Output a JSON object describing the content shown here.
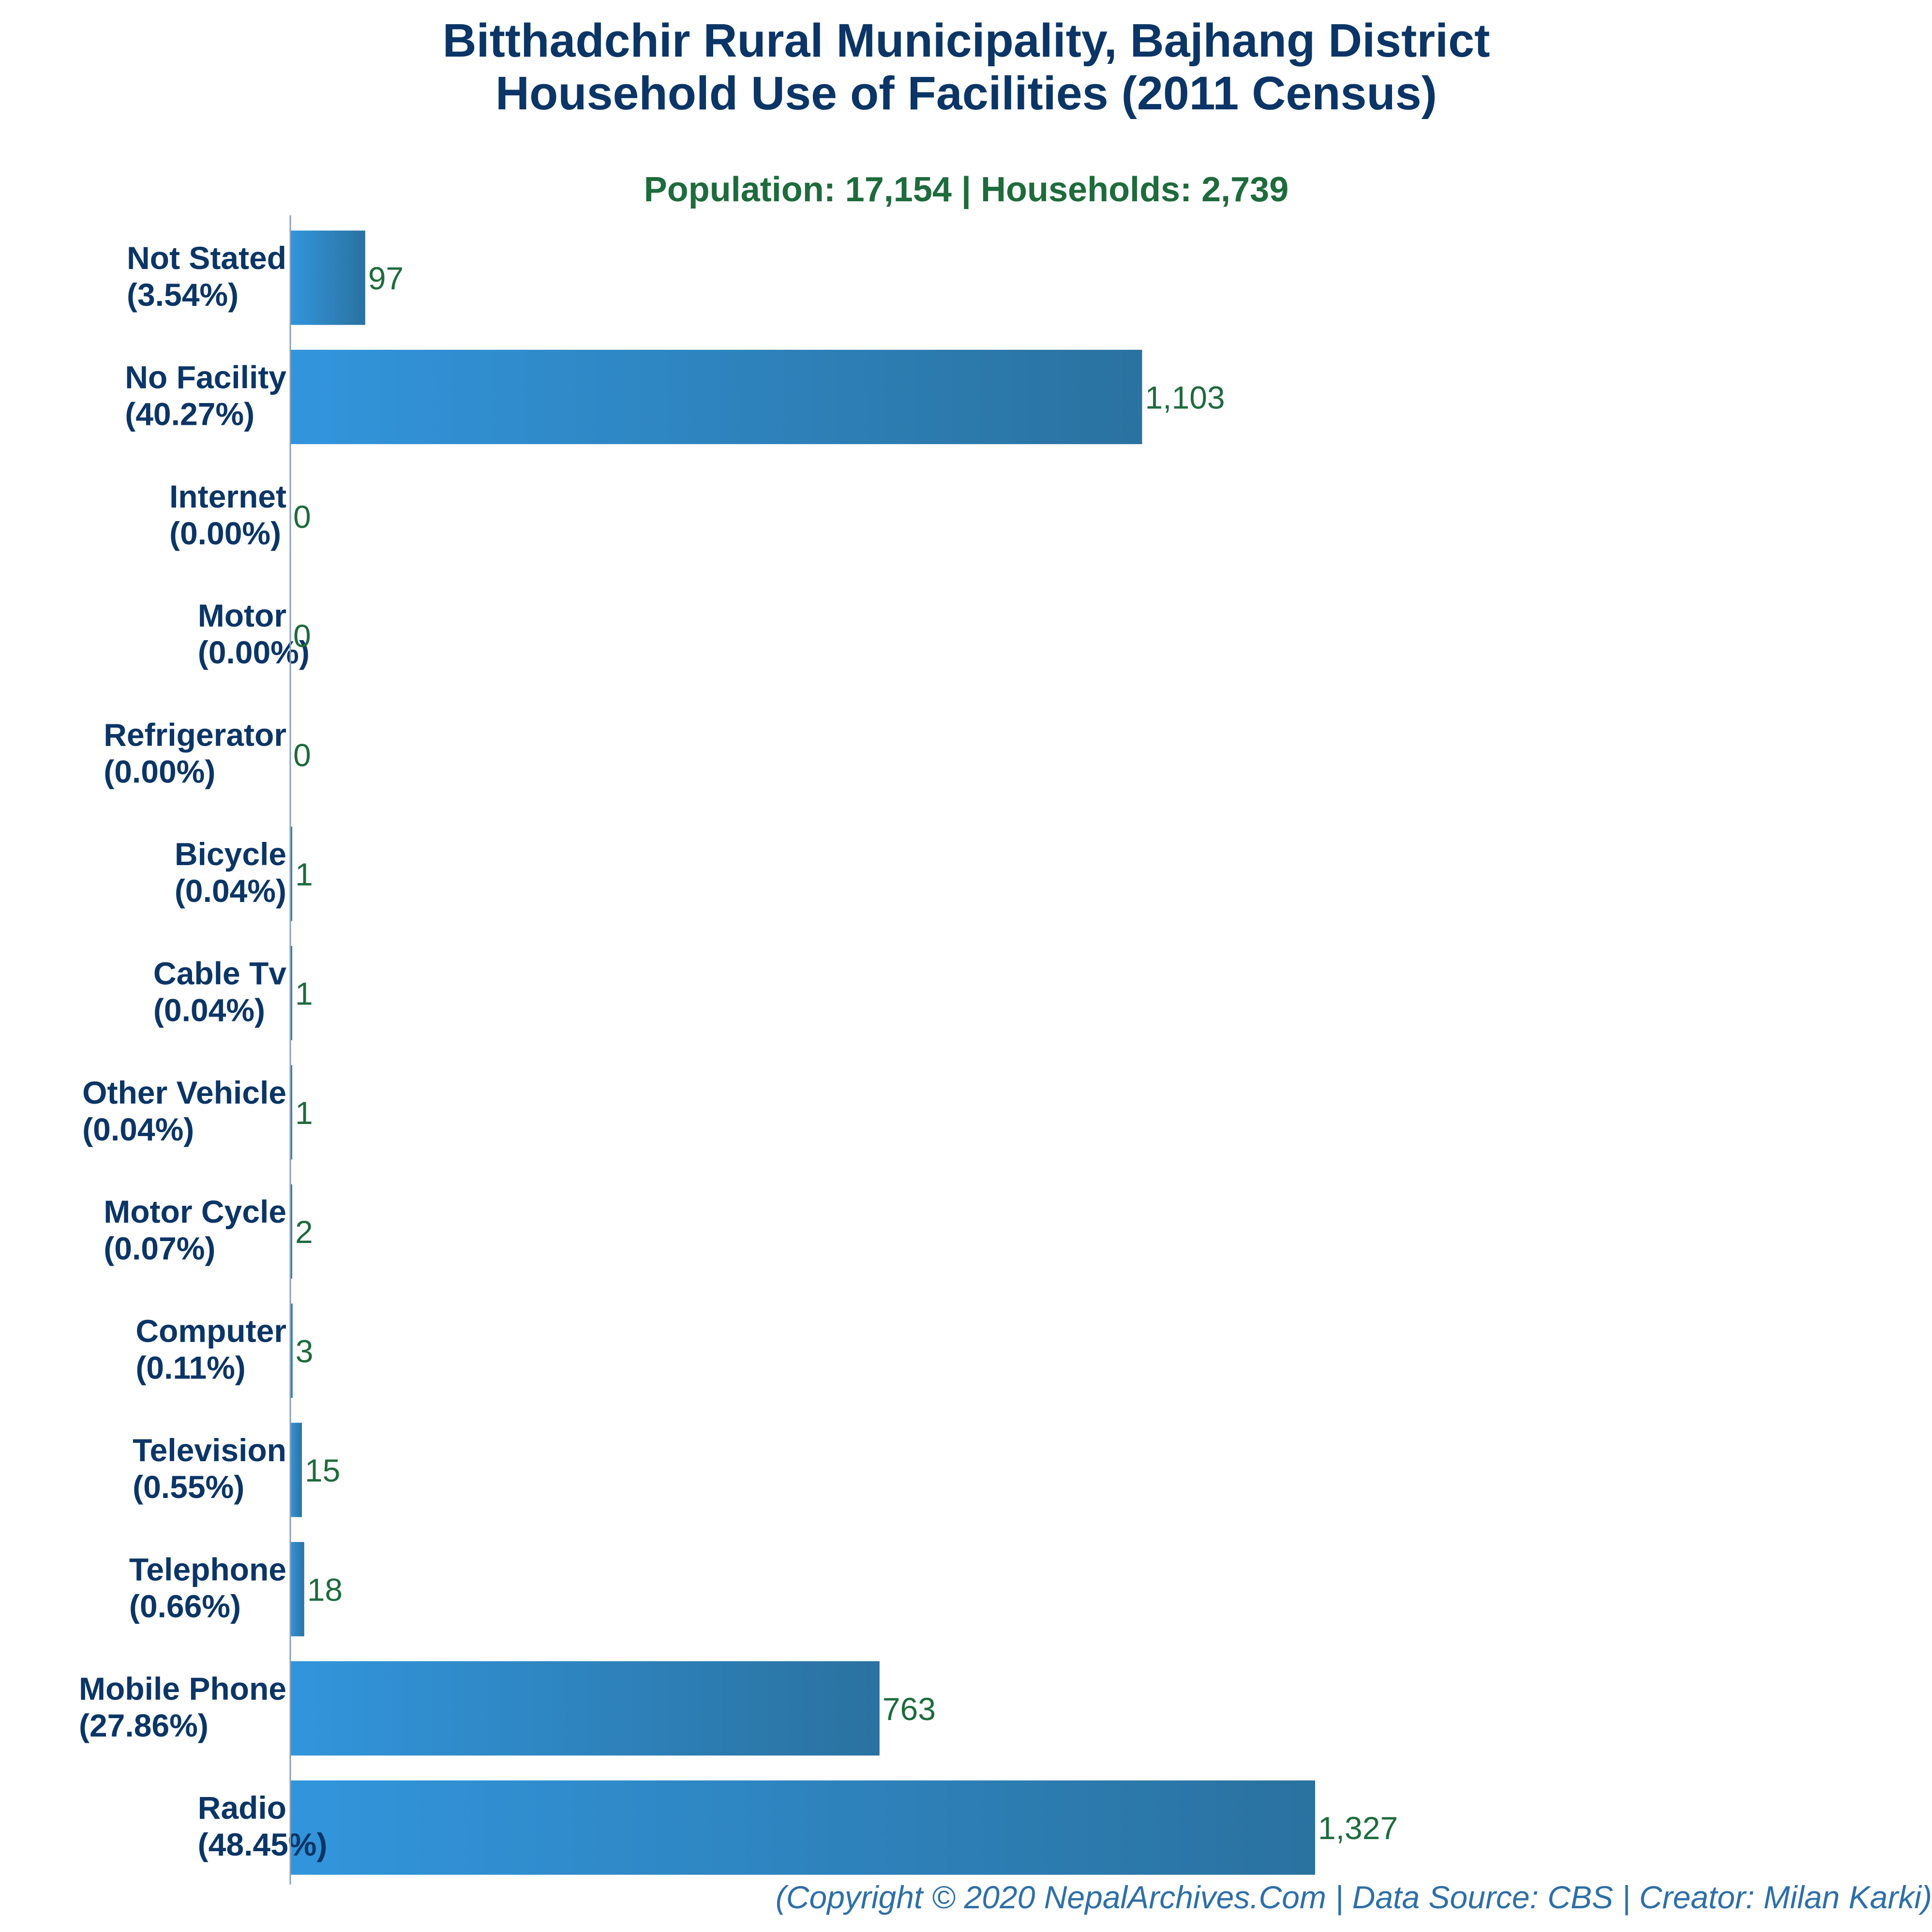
{
  "colors": {
    "title": "#0b3566",
    "subtitle": "#1e6b3c",
    "value_label": "#1e6b3c",
    "bar_light": "#3295dc",
    "bar_dark": "#2a72a0",
    "axis": "#8aa0b4",
    "footer": "#2e6fa8"
  },
  "chart_data": {
    "type": "bar",
    "orientation": "horizontal",
    "title_line1": "Bitthadchir Rural Municipality, Bajhang District",
    "title_line2": "Household Use of Facilities (2011 Census)",
    "subtitle": "Population: 17,154 | Households: 2,739",
    "xlabel": "",
    "ylabel": "",
    "grid": false,
    "categories": [
      "Not Stated",
      "No Facility",
      "Internet",
      "Motor",
      "Refrigerator",
      "Bicycle",
      "Cable Tv",
      "Other Vehicle",
      "Motor Cycle",
      "Computer",
      "Television",
      "Telephone",
      "Mobile Phone",
      "Radio"
    ],
    "percent_labels": [
      "(3.54%)",
      "(40.27%)",
      "(0.00%)",
      "(0.00%)",
      "(0.00%)",
      "(0.04%)",
      "(0.04%)",
      "(0.04%)",
      "(0.07%)",
      "(0.11%)",
      "(0.55%)",
      "(0.66%)",
      "(27.86%)",
      "(48.45%)"
    ],
    "values": [
      97,
      1103,
      0,
      0,
      0,
      1,
      1,
      1,
      2,
      3,
      15,
      18,
      763,
      1327
    ],
    "value_labels": [
      "97",
      "1,103",
      "0",
      "0",
      "0",
      "1",
      "1",
      "1",
      "2",
      "3",
      "15",
      "18",
      "763",
      "1,327"
    ]
  },
  "footer": "(Copyright © 2020 NepalArchives.Com | Data Source: CBS | Creator: Milan Karki)"
}
